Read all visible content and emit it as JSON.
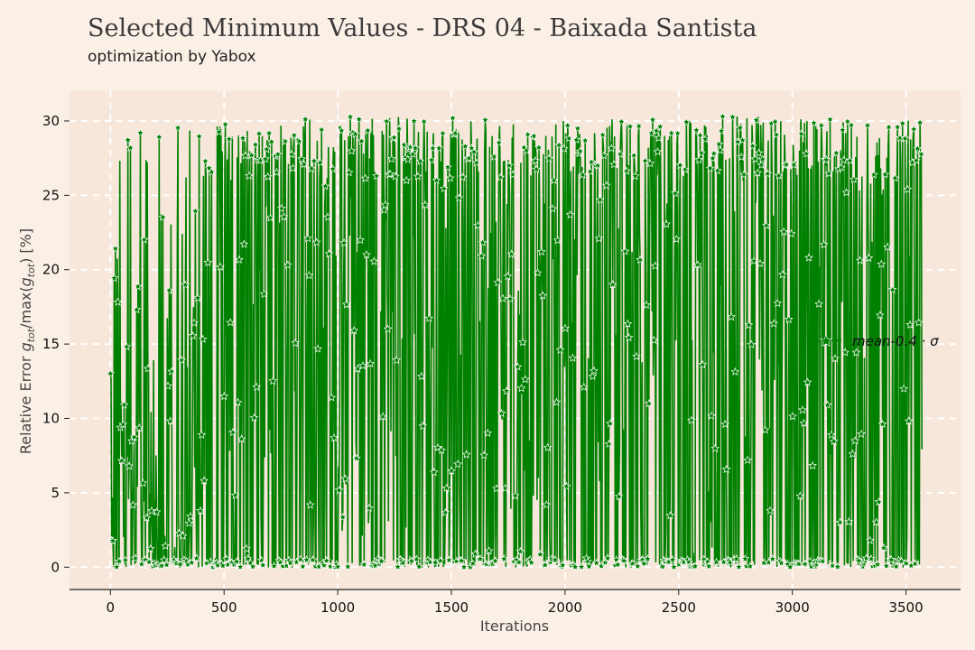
{
  "chart_data": {
    "type": "line",
    "title": "Selected Minimum Values - DRS 04 - Baixada Santista",
    "subtitle": "optimization by Yabox",
    "xlabel": "Iterations",
    "ylabel": "Relative Error g_tot/max(g_tot) [%]",
    "ylabel_parts": {
      "pre": "Relative Error ",
      "g1": "g",
      "sub1": "tot",
      "mid": "/max(",
      "g2": "g",
      "sub2": "tot",
      "post": ") [%]"
    },
    "xlim": [
      -180,
      3740
    ],
    "ylim": [
      -1.5,
      32
    ],
    "xticks": [
      0,
      500,
      1000,
      1500,
      2000,
      2500,
      3000,
      3500
    ],
    "yticks": [
      0,
      5,
      10,
      15,
      20,
      25,
      30
    ],
    "grid": true,
    "legend_position": "right",
    "series": [
      {
        "name": "mean-0.4 · σ",
        "color": "#008000",
        "marker": "star",
        "x_start": 0,
        "x_end": 3570,
        "n_points": 3570,
        "y_min": 0,
        "y_max": 30.3,
        "description_of_values": "dense oscillation between ~0 and ~30 on every iteration"
      }
    ]
  }
}
